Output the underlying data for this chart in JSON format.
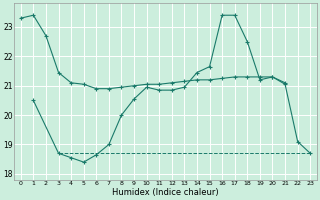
{
  "xlabel": "Humidex (Indice chaleur)",
  "bg_color": "#cceedd",
  "grid_color": "#ffffff",
  "line_color": "#1a7a6a",
  "line1_x": [
    0,
    1,
    2,
    3,
    4,
    5,
    6,
    7,
    8,
    9,
    10,
    11,
    12,
    13,
    14,
    15,
    16,
    17,
    18,
    19,
    20,
    21
  ],
  "line1_y": [
    23.3,
    23.4,
    22.7,
    21.45,
    21.1,
    21.05,
    20.9,
    20.9,
    20.95,
    21.0,
    21.05,
    21.05,
    21.1,
    21.15,
    21.2,
    21.2,
    21.25,
    21.3,
    21.3,
    21.3,
    21.3,
    21.1
  ],
  "line2_x": [
    1,
    3,
    4,
    5,
    6,
    7,
    8,
    9,
    10,
    11,
    12,
    13,
    14,
    15,
    16,
    17,
    18,
    19,
    20,
    21,
    22,
    23
  ],
  "line2_y": [
    20.5,
    18.7,
    18.55,
    18.4,
    18.65,
    19.0,
    20.0,
    20.55,
    20.95,
    20.85,
    20.85,
    20.95,
    21.45,
    21.65,
    23.4,
    23.4,
    22.5,
    21.2,
    21.3,
    21.05,
    19.1,
    18.7
  ],
  "line3_x": [
    3,
    23
  ],
  "line3_y": [
    18.7,
    18.7
  ],
  "ylim": [
    17.8,
    23.8
  ],
  "yticks": [
    18,
    19,
    20,
    21,
    22,
    23
  ],
  "xlim": [
    -0.5,
    23.5
  ],
  "xticks": [
    0,
    1,
    2,
    3,
    4,
    5,
    6,
    7,
    8,
    9,
    10,
    11,
    12,
    13,
    14,
    15,
    16,
    17,
    18,
    19,
    20,
    21,
    22,
    23
  ]
}
